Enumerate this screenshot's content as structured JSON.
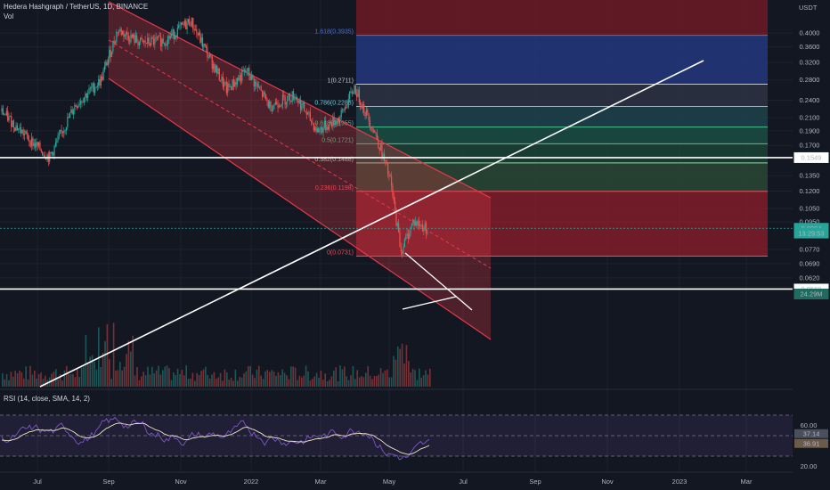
{
  "header": {
    "title": "Hedera Hashgraph / TetherUS, 1D, BINANCE",
    "vol_label": "Vol",
    "currency": "USDT"
  },
  "rsi": {
    "label": "RSI (14, close, SMA, 14, 2)",
    "ticks": [
      {
        "v": 60,
        "t": "60.00"
      },
      {
        "v": 20,
        "t": "20.00"
      }
    ],
    "value_badge": "37.14",
    "sma_badge": "36.91",
    "upper_band": 70,
    "lower_band": 30,
    "mid": 50
  },
  "price_axis": {
    "ticks": [
      {
        "v": 0.4,
        "t": "0.4000"
      },
      {
        "v": 0.36,
        "t": "0.3600"
      },
      {
        "v": 0.32,
        "t": "0.3200"
      },
      {
        "v": 0.28,
        "t": "0.2800"
      },
      {
        "v": 0.24,
        "t": "0.2400"
      },
      {
        "v": 0.21,
        "t": "0.2100"
      },
      {
        "v": 0.19,
        "t": "0.1900"
      },
      {
        "v": 0.17,
        "t": "0.1700"
      },
      {
        "v": 0.135,
        "t": "0.1350"
      },
      {
        "v": 0.12,
        "t": "0.1200"
      },
      {
        "v": 0.105,
        "t": "0.1050"
      },
      {
        "v": 0.095,
        "t": "0.0950"
      },
      {
        "v": 0.077,
        "t": "0.0770"
      },
      {
        "v": 0.069,
        "t": "0.0690"
      },
      {
        "v": 0.062,
        "t": "0.0620"
      }
    ],
    "badges": [
      {
        "v": 0.1549,
        "t": "0.1549",
        "kind": "line"
      },
      {
        "v": 0.0904,
        "t": "0.0904",
        "kind": "last"
      },
      {
        "v": 0.0872,
        "t": "13:29:53",
        "kind": "timer"
      },
      {
        "v": 0.0569,
        "t": "0.0569",
        "kind": "line"
      },
      {
        "v": 0.0548,
        "t": "24.29M",
        "kind": "vol"
      }
    ]
  },
  "time_axis": [
    "Jul",
    "Sep",
    "Nov",
    "2022",
    "Mar",
    "May",
    "Jul",
    "Sep",
    "Nov",
    "2023",
    "Mar"
  ],
  "fib": {
    "levels": [
      {
        "ratio": "1.618",
        "price": 0.3935,
        "text": "1.618(0.3935)"
      },
      {
        "ratio": "1",
        "price": 0.2711,
        "text": "1(0.2711)"
      },
      {
        "ratio": "0.786",
        "price": 0.2288,
        "text": "0.786(0.2288)"
      },
      {
        "ratio": "0.618",
        "price": 0.1955,
        "text": "0.618(0.1955)"
      },
      {
        "ratio": "0.5",
        "price": 0.1721,
        "text": "0.5(0.1721)"
      },
      {
        "ratio": "0.382",
        "price": 0.1488,
        "text": "0.382(0.1488)"
      },
      {
        "ratio": "0.236",
        "price": 0.1198,
        "text": "0.236(0.1198)"
      },
      {
        "ratio": "0",
        "price": 0.0731,
        "text": "0(0.0731)"
      }
    ]
  },
  "colors": {
    "background": "#131722",
    "up": "#26a69a",
    "down": "#ef5350",
    "channel": "#e53948",
    "trendline": "#ffffff",
    "rsi_line": "#7e57c2",
    "rsi_sma": "#f0e6c8",
    "last_price_badge": "#26a69a"
  },
  "chart_data": {
    "type": "candlestick",
    "symbol": "HBARUSDT",
    "interval": "1D",
    "ylim": [
      0.052,
      0.48
    ],
    "y_scale": "log",
    "x_range": [
      "2021-06-10",
      "2023-03-25"
    ],
    "series_approx_close": [
      {
        "date": "2021-06-10",
        "close": 0.22
      },
      {
        "date": "2021-07-05",
        "close": 0.175
      },
      {
        "date": "2021-07-20",
        "close": 0.155
      },
      {
        "date": "2021-08-10",
        "close": 0.23
      },
      {
        "date": "2021-09-01",
        "close": 0.28
      },
      {
        "date": "2021-09-15",
        "close": 0.41
      },
      {
        "date": "2021-10-05",
        "close": 0.37
      },
      {
        "date": "2021-10-25",
        "close": 0.38
      },
      {
        "date": "2021-11-15",
        "close": 0.44
      },
      {
        "date": "2021-12-01",
        "close": 0.33
      },
      {
        "date": "2021-12-15",
        "close": 0.26
      },
      {
        "date": "2022-01-01",
        "close": 0.3
      },
      {
        "date": "2022-01-20",
        "close": 0.23
      },
      {
        "date": "2022-02-10",
        "close": 0.25
      },
      {
        "date": "2022-03-01",
        "close": 0.19
      },
      {
        "date": "2022-03-20",
        "close": 0.21
      },
      {
        "date": "2022-04-01",
        "close": 0.265
      },
      {
        "date": "2022-04-20",
        "close": 0.18
      },
      {
        "date": "2022-05-01",
        "close": 0.13
      },
      {
        "date": "2022-05-10",
        "close": 0.076
      },
      {
        "date": "2022-05-20",
        "close": 0.095
      },
      {
        "date": "2022-06-01",
        "close": 0.0904
      }
    ],
    "horizontal_lines": [
      0.1549,
      0.0569
    ],
    "last_price": 0.0904
  }
}
